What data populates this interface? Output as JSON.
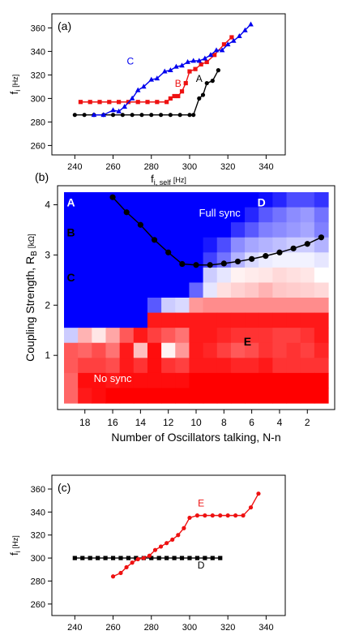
{
  "chart_data": [
    {
      "panel_label": "(a)",
      "type": "scatter",
      "xlabel_main": "f",
      "xlabel_sub": "i, self",
      "xlabel_unit": "[Hz]",
      "ylabel_main": "f",
      "ylabel_sub": "i",
      "ylabel_unit": "[Hz]",
      "xlim": [
        228,
        350
      ],
      "ylim": [
        252,
        372
      ],
      "xticks": [
        240,
        260,
        280,
        300,
        320,
        340
      ],
      "yticks": [
        260,
        280,
        300,
        320,
        340,
        360
      ],
      "series": [
        {
          "name": "A",
          "color": "#000000",
          "marker": "circle",
          "x": [
            240,
            245,
            250,
            255,
            260,
            265,
            270,
            275,
            280,
            285,
            290,
            295,
            300,
            302,
            305,
            307,
            309,
            312,
            315
          ],
          "y": [
            286,
            286,
            286,
            286,
            286,
            286,
            286,
            286,
            286,
            286,
            286,
            286,
            286,
            286,
            300,
            303,
            313,
            315,
            324
          ]
        },
        {
          "name": "B",
          "color": "#ee1111",
          "marker": "square",
          "x": [
            243,
            248,
            253,
            258,
            263,
            268,
            273,
            278,
            283,
            288,
            290,
            292,
            294,
            296,
            298,
            300,
            303,
            306,
            309,
            313,
            318,
            322
          ],
          "y": [
            297,
            297,
            297,
            297,
            297,
            297,
            297,
            297,
            297,
            297,
            300,
            302,
            302,
            306,
            313,
            323,
            325,
            329,
            331,
            337,
            346,
            352
          ]
        },
        {
          "name": "C",
          "color": "#0000ee",
          "marker": "triangle",
          "x": [
            250,
            255,
            260,
            263,
            266,
            270,
            273,
            276,
            280,
            283,
            287,
            290,
            293,
            296,
            299,
            302,
            305,
            308,
            311,
            314,
            317,
            320,
            323,
            326,
            329,
            332
          ],
          "y": [
            286,
            286,
            290,
            289,
            293,
            300,
            307,
            310,
            316,
            317,
            323,
            324,
            327,
            328,
            331,
            332,
            332,
            334,
            337,
            341,
            341,
            346,
            349,
            353,
            358,
            363
          ]
        }
      ]
    },
    {
      "panel_label": "(b)",
      "type": "heatmap",
      "xlabel": "Number of Oscillators talking, N-n",
      "ylabel_main": "Coupling Strength, R",
      "ylabel_sub": "B",
      "ylabel_unit": "[kΩ]",
      "xlim": [
        19.5,
        0.5
      ],
      "ylim": [
        0.05,
        4.25
      ],
      "xticks": [
        18,
        16,
        14,
        12,
        10,
        8,
        6,
        4,
        2
      ],
      "yticks": [
        1,
        2,
        3,
        4
      ],
      "rows": 14,
      "cols": 19,
      "cells": [
        [
          -1,
          -1,
          -1,
          -1,
          -1,
          -1,
          -1,
          -1,
          -1,
          -1,
          -1,
          -1,
          -1,
          -1,
          -0.95,
          -0.85,
          -0.7,
          -0.7,
          -0.8
        ],
        [
          -1,
          -1,
          -1,
          -1,
          -1,
          -1,
          -1,
          -1,
          -1,
          -1,
          -1,
          -1,
          -1,
          -0.85,
          -0.65,
          -0.55,
          -0.45,
          -0.4,
          -0.55
        ],
        [
          -1,
          -1,
          -1,
          -1,
          -1,
          -1,
          -1,
          -1,
          -1,
          -1,
          -1,
          -1,
          -0.8,
          -0.65,
          -0.5,
          -0.45,
          -0.4,
          -0.35,
          -0.5
        ],
        [
          -1,
          -1,
          -1,
          -1,
          -1,
          -1,
          -1,
          -1,
          -1,
          -1,
          -0.9,
          -0.7,
          -0.45,
          -0.35,
          -0.3,
          -0.25,
          -0.2,
          -0.2,
          -0.3
        ],
        [
          -1,
          -1,
          -1,
          -1,
          -1,
          -1,
          -1,
          -1,
          -1,
          -1,
          -0.75,
          -0.55,
          -0.3,
          -0.15,
          -0.08,
          -0.05,
          -0.05,
          -0.05,
          -0.1
        ],
        [
          -1,
          -1,
          -1,
          -1,
          -1,
          -1,
          -1,
          -1,
          -1,
          -1,
          -0.2,
          -0.1,
          0.05,
          0.08,
          0.1,
          0.15,
          0.12,
          0.1,
          0
        ],
        [
          -1,
          -1,
          -1,
          -1,
          -1,
          -1,
          -1,
          -1,
          -1,
          -0.6,
          -0.1,
          0.12,
          0.18,
          0.22,
          0.3,
          0.22,
          0.2,
          0.18,
          0.15
        ],
        [
          -1,
          -1,
          -1,
          -1,
          -1,
          -1,
          -0.65,
          -0.2,
          -0.15,
          0.4,
          0.45,
          0.45,
          0.45,
          0.45,
          0.45,
          0.45,
          0.45,
          0.45,
          0.45
        ],
        [
          -1,
          -1,
          -1,
          -1,
          -1,
          -1,
          0.9,
          0.9,
          0.9,
          0.9,
          0.9,
          0.9,
          0.9,
          0.9,
          0.9,
          0.9,
          0.9,
          0.9,
          0.9
        ],
        [
          -0.2,
          0.3,
          0.1,
          0.35,
          0.65,
          0.9,
          0.75,
          0.65,
          0.55,
          0.9,
          0.9,
          0.85,
          0.8,
          0.8,
          0.8,
          0.75,
          0.75,
          0.8,
          0.9
        ],
        [
          0.65,
          0.6,
          0.7,
          0.55,
          0.9,
          0.25,
          0.95,
          0.05,
          0.4,
          0.9,
          0.85,
          0.75,
          0.65,
          0.7,
          0.8,
          0.75,
          0.8,
          0.75,
          0.85
        ],
        [
          0.65,
          0.75,
          0.75,
          0.7,
          0.9,
          0.8,
          0.95,
          0.8,
          0.75,
          0.9,
          0.9,
          0.9,
          0.85,
          0.85,
          0.9,
          0.8,
          0.8,
          0.8,
          0.8
        ],
        [
          0.6,
          0.95,
          0.95,
          0.9,
          0.95,
          0.95,
          0.95,
          0.95,
          0.95,
          1,
          1,
          1,
          1,
          1,
          1,
          1,
          1,
          1,
          1
        ],
        [
          0.6,
          0.9,
          0.95,
          1,
          1,
          1,
          1,
          1,
          1,
          1,
          1,
          1,
          1,
          1,
          1,
          1,
          1,
          1,
          1
        ]
      ],
      "sync_line": {
        "x": [
          16,
          15,
          14,
          13,
          12,
          11,
          10,
          9,
          8,
          7,
          6,
          5,
          4,
          3,
          2,
          1
        ],
        "y": [
          4.15,
          3.85,
          3.6,
          3.3,
          3.05,
          2.82,
          2.8,
          2.8,
          2.83,
          2.87,
          2.92,
          2.98,
          3.05,
          3.13,
          3.22,
          3.35
        ]
      },
      "annotations": [
        {
          "text": "A",
          "x": 19,
          "y": 4.05,
          "color": "#ffffff",
          "bold": true
        },
        {
          "text": "B",
          "x": 19,
          "y": 3.45,
          "color": "#000000",
          "bold": true
        },
        {
          "text": "C",
          "x": 19,
          "y": 2.55,
          "color": "#000000",
          "bold": true
        },
        {
          "text": "D",
          "x": 5.3,
          "y": 4.05,
          "color": "#ffffff",
          "bold": true
        },
        {
          "text": "E",
          "x": 6.3,
          "y": 1.28,
          "color": "#000000",
          "bold": true
        },
        {
          "text": "Full sync",
          "x": 8.3,
          "y": 3.85,
          "color": "#ffffff",
          "bold": false
        },
        {
          "text": "No sync",
          "x": 16,
          "y": 0.55,
          "color": "#ffffff",
          "bold": false
        }
      ]
    },
    {
      "panel_label": "(c)",
      "type": "scatter",
      "xlabel_main": "f",
      "xlabel_sub": "i, self",
      "xlabel_unit": "[Hz]",
      "ylabel_main": "f",
      "ylabel_sub": "i",
      "ylabel_unit": "[Hz]",
      "xlim": [
        228,
        350
      ],
      "ylim": [
        250,
        372
      ],
      "xticks": [
        240,
        260,
        280,
        300,
        320,
        340
      ],
      "yticks": [
        260,
        280,
        300,
        320,
        340,
        360
      ],
      "series": [
        {
          "name": "D",
          "color": "#000000",
          "marker": "square",
          "x": [
            240,
            244,
            248,
            252,
            256,
            260,
            264,
            268,
            272,
            276,
            280,
            284,
            288,
            292,
            296,
            300,
            304,
            308,
            312,
            316
          ],
          "y": [
            300,
            300,
            300,
            300,
            300,
            300,
            300,
            300,
            300,
            300,
            300,
            300,
            300,
            300,
            300,
            300,
            300,
            300,
            300,
            300
          ]
        },
        {
          "name": "E",
          "color": "#ee1111",
          "marker": "circle",
          "x": [
            260,
            264,
            267,
            270,
            273,
            276,
            279,
            282,
            285,
            288,
            291,
            294,
            297,
            300,
            304,
            308,
            312,
            316,
            320,
            324,
            328,
            332,
            336
          ],
          "y": [
            284,
            287,
            292,
            296,
            299,
            300,
            302,
            307,
            310,
            313,
            316,
            320,
            326,
            335,
            337,
            337,
            337,
            337,
            337,
            337,
            337,
            344,
            356
          ]
        }
      ]
    }
  ]
}
